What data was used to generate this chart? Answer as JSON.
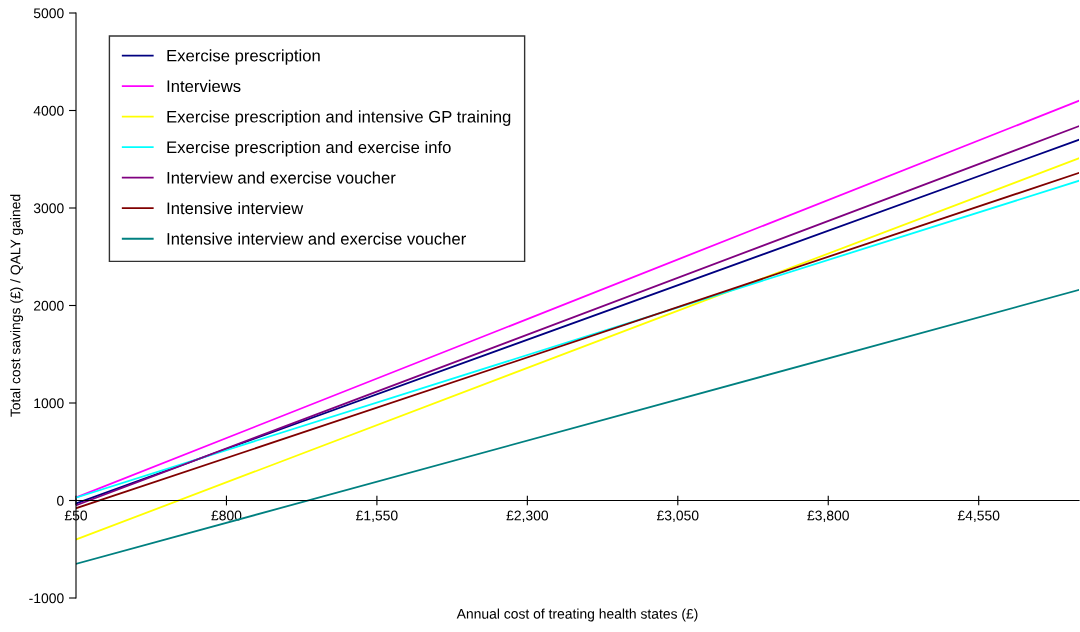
{
  "chart_data": {
    "type": "line",
    "xlabel": "Annual cost of treating health states (£)",
    "ylabel": "Total cost savings (£) / QALY gained",
    "x": [
      50,
      5050
    ],
    "series": [
      {
        "name": "Exercise prescription",
        "color": "#000080",
        "values": [
          -30,
          3700
        ]
      },
      {
        "name": "Interviews",
        "color": "#ff00ff",
        "values": [
          30,
          4100
        ]
      },
      {
        "name": "Exercise prescription and intensive GP training",
        "color": "#ffff00",
        "values": [
          -400,
          3510
        ]
      },
      {
        "name": "Exercise prescription and exercise info",
        "color": "#00ffff",
        "values": [
          30,
          3280
        ]
      },
      {
        "name": "Interview and exercise voucher",
        "color": "#800080",
        "values": [
          -50,
          3840
        ]
      },
      {
        "name": "Intensive interview",
        "color": "#800000",
        "values": [
          -80,
          3360
        ]
      },
      {
        "name": "Intensive interview and exercise voucher",
        "color": "#008080",
        "values": [
          -650,
          2160
        ]
      }
    ],
    "xlim": [
      50,
      5050
    ],
    "xticks": [
      {
        "value": 50,
        "label": "£50"
      },
      {
        "value": 800,
        "label": "£800"
      },
      {
        "value": 1550,
        "label": "£1,550"
      },
      {
        "value": 2300,
        "label": "£2,300"
      },
      {
        "value": 3050,
        "label": "£3,050"
      },
      {
        "value": 3800,
        "label": "£3,800"
      },
      {
        "value": 4550,
        "label": "£4,550"
      }
    ],
    "ylim": [
      -1000,
      5000
    ],
    "yticks": [
      -1000,
      0,
      1000,
      2000,
      3000,
      4000,
      5000
    ],
    "grid": false,
    "legend": "top left",
    "marker": "none",
    "line_style": "solid"
  }
}
